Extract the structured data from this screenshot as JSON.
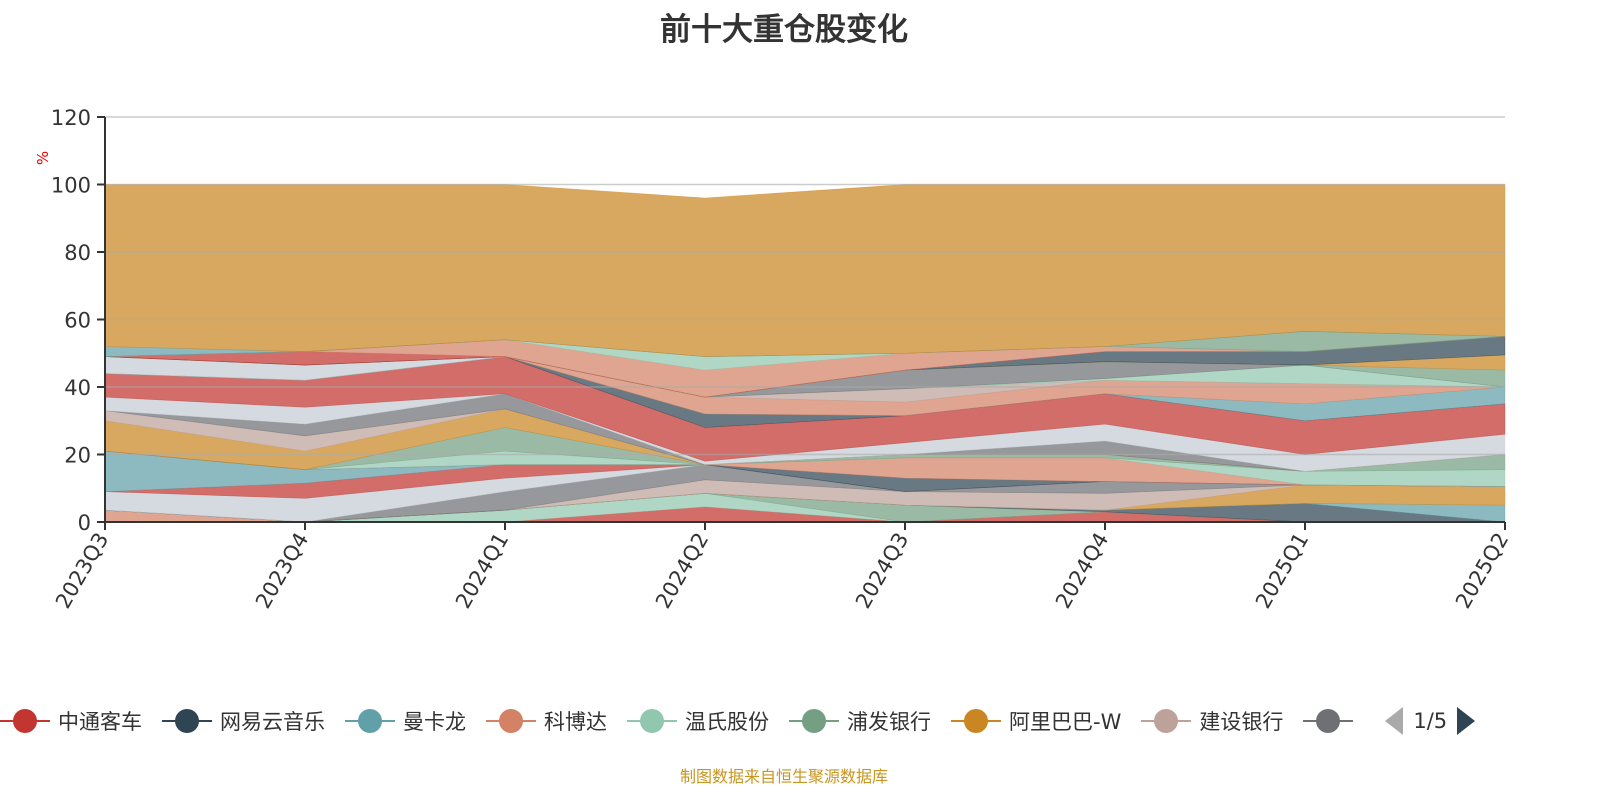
{
  "chart_data": {
    "type": "area",
    "stacked": true,
    "title": "前十大重仓股变化",
    "ylabel": "%",
    "ylim": [
      0,
      120
    ],
    "yticks": [
      0,
      20,
      40,
      60,
      80,
      100,
      120
    ],
    "grid": true,
    "categories": [
      "2023Q3",
      "2023Q4",
      "2024Q1",
      "2024Q2",
      "2024Q3",
      "2024Q4",
      "2025Q1",
      "2025Q2"
    ],
    "series": [
      {
        "name": "科博达",
        "color": "#d48265",
        "values": [
          3.5,
          0,
          0,
          0,
          0,
          0,
          0,
          0
        ]
      },
      {
        "name": "中通客车",
        "color": "#c23531",
        "values": [
          0,
          0,
          0,
          4.5,
          0,
          3,
          0,
          0
        ]
      },
      {
        "name": "温氏股份",
        "color": "#91c7ae",
        "values": [
          0,
          0,
          3.5,
          4,
          0,
          0,
          0,
          0
        ]
      },
      {
        "name": "浦发银行",
        "color": "#749f83",
        "values": [
          0,
          0,
          0,
          0,
          5,
          0,
          0,
          0
        ]
      },
      {
        "name": "网易云音乐",
        "color": "#2f4554",
        "values": [
          0,
          0,
          0,
          0,
          0,
          0.5,
          5.5,
          0
        ]
      },
      {
        "name": "曼卡龙",
        "color": "#61a0a8",
        "values": [
          0,
          0,
          0,
          0,
          0,
          0,
          0,
          5
        ]
      },
      {
        "name": "阿里巴巴-W",
        "color": "#ca8622",
        "values": [
          0,
          0,
          0,
          0,
          0,
          0,
          5.5,
          5.5
        ]
      },
      {
        "name": "建设银行",
        "color": "#bda29a",
        "values": [
          0,
          0,
          0,
          4,
          4,
          5,
          0,
          0
        ]
      },
      {
        "color": "#6e7074",
        "values": [
          0,
          0,
          5.5,
          4.5,
          0,
          3.5,
          0,
          0
        ]
      },
      {
        "color": "#c4ccd3",
        "values": [
          5.5,
          7,
          4,
          0,
          0,
          0,
          0,
          0
        ]
      },
      {
        "color": "#c23531",
        "values": [
          0,
          4.5,
          4,
          0,
          0,
          0,
          0,
          0
        ]
      },
      {
        "color": "#61a0a8",
        "values": [
          12,
          4,
          0,
          0,
          0,
          0,
          0,
          0
        ]
      },
      {
        "color": "#2f4554",
        "values": [
          0,
          0,
          0,
          0,
          4,
          0,
          0,
          0
        ]
      },
      {
        "color": "#d48265",
        "values": [
          0,
          0,
          0,
          0,
          6,
          7,
          0,
          0
        ]
      },
      {
        "color": "#91c7ae",
        "values": [
          0,
          0,
          4,
          0,
          0,
          0,
          4,
          5
        ]
      },
      {
        "color": "#749f83",
        "values": [
          0,
          0,
          7,
          0,
          1,
          1,
          0,
          4.5
        ]
      },
      {
        "color": "#ca8622",
        "values": [
          9,
          5.5,
          5.5,
          0,
          0,
          0,
          0,
          0
        ]
      },
      {
        "color": "#bda29a",
        "values": [
          3,
          4.5,
          0,
          0,
          0,
          0,
          0,
          0
        ]
      },
      {
        "color": "#6e7074",
        "values": [
          0,
          3.5,
          4.5,
          0,
          0,
          4,
          0,
          0
        ]
      },
      {
        "color": "#c4ccd3",
        "values": [
          4,
          5,
          0,
          1,
          3.5,
          5,
          5,
          6
        ]
      },
      {
        "color": "#c23531",
        "values": [
          7,
          8,
          11,
          10,
          8,
          9,
          10,
          9
        ]
      },
      {
        "color": "#2f4554",
        "values": [
          0,
          0,
          0,
          4,
          0,
          0,
          0,
          0
        ]
      },
      {
        "color": "#61a0a8",
        "values": [
          0,
          0,
          0,
          0,
          0,
          0,
          5,
          5
        ]
      },
      {
        "color": "#d48265",
        "values": [
          0,
          0,
          0,
          5,
          4,
          4,
          6,
          0
        ]
      },
      {
        "color": "#bda29a",
        "values": [
          0,
          0,
          0,
          0,
          4,
          0,
          0,
          0
        ]
      },
      {
        "color": "#91c7ae",
        "values": [
          0,
          0,
          0,
          0,
          0,
          0.5,
          5.5,
          0
        ]
      },
      {
        "color": "#6e7074",
        "values": [
          0,
          0,
          0,
          0,
          5.5,
          5,
          0,
          0
        ]
      },
      {
        "color": "#c4ccd3",
        "values": [
          5,
          4.5,
          0,
          0,
          0,
          0,
          0,
          0
        ]
      },
      {
        "color": "#749f83",
        "values": [
          0,
          0,
          0,
          0,
          0,
          0,
          0,
          5
        ]
      },
      {
        "color": "#ca8622",
        "values": [
          0,
          0,
          0,
          0,
          0,
          0,
          0,
          4.5
        ]
      },
      {
        "color": "#2f4554",
        "values": [
          0,
          0,
          0,
          0,
          0,
          3,
          4,
          5.5
        ]
      },
      {
        "color": "#c23531",
        "values": [
          0,
          4,
          0,
          0,
          0,
          0,
          0,
          0
        ]
      },
      {
        "color": "#d48265",
        "values": [
          0,
          0,
          5,
          8,
          5,
          1.5,
          0,
          0
        ]
      },
      {
        "color": "#91c7ae",
        "values": [
          0,
          0,
          0,
          4,
          0,
          0,
          0,
          0
        ]
      },
      {
        "color": "#749f83",
        "values": [
          0,
          0,
          0,
          0,
          0,
          0,
          6,
          0
        ]
      },
      {
        "color": "#61a0a8",
        "values": [
          3,
          0,
          0,
          0,
          0,
          0,
          0,
          0
        ]
      },
      {
        "color": "#ca8622",
        "values": [
          48,
          49.5,
          46,
          47,
          50,
          48,
          43.5,
          45
        ]
      }
    ],
    "legend_placement": "bottom"
  },
  "legend": {
    "items": [
      {
        "label": "中通客车",
        "color": "#c23531"
      },
      {
        "label": "网易云音乐",
        "color": "#2f4554"
      },
      {
        "label": "曼卡龙",
        "color": "#61a0a8"
      },
      {
        "label": "科博达",
        "color": "#d48265"
      },
      {
        "label": "温氏股份",
        "color": "#91c7ae"
      },
      {
        "label": "浦发银行",
        "color": "#749f83"
      },
      {
        "label": "阿里巴巴-W",
        "color": "#ca8622"
      },
      {
        "label": "建设银行",
        "color": "#bda29a"
      },
      {
        "label": "",
        "color": "#6e7074"
      }
    ],
    "page": "1/5"
  },
  "footer": "制图数据来自恒生聚源数据库"
}
